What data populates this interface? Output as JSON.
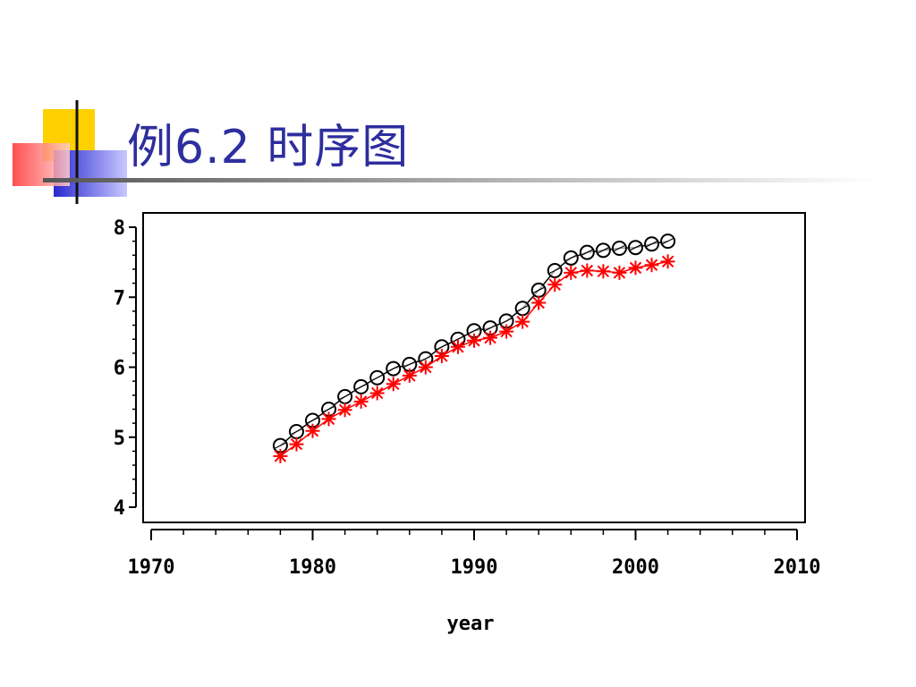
{
  "slide": {
    "title": "例6.2 时序图",
    "accent_colors": {
      "title": "#2e2e9e",
      "yellow": "#ffd000",
      "blue": "#2a2ad0",
      "red": "#ff4040"
    }
  },
  "chart_data": {
    "type": "scatter",
    "title": "",
    "xlabel": "year",
    "ylabel": "",
    "xlim": [
      1970,
      2010
    ],
    "ylim": [
      4,
      8
    ],
    "xticks": [
      1970,
      1980,
      1990,
      2000,
      2010
    ],
    "yticks": [
      4,
      5,
      6,
      7,
      8
    ],
    "grid": false,
    "legend": "none",
    "series": [
      {
        "marker": "circle",
        "color": "#000000",
        "x": [
          1978,
          1979,
          1980,
          1981,
          1982,
          1983,
          1984,
          1985,
          1986,
          1987,
          1988,
          1989,
          1990,
          1991,
          1992,
          1993,
          1994,
          1995,
          1996,
          1997,
          1998,
          1999,
          2000,
          2001,
          2002
        ],
        "y": [
          4.88,
          5.08,
          5.24,
          5.4,
          5.58,
          5.72,
          5.85,
          5.98,
          6.04,
          6.12,
          6.29,
          6.4,
          6.52,
          6.56,
          6.66,
          6.84,
          7.1,
          7.38,
          7.56,
          7.64,
          7.67,
          7.7,
          7.71,
          7.76,
          7.8
        ]
      },
      {
        "marker": "star",
        "color": "#ff0000",
        "x": [
          1978,
          1979,
          1980,
          1981,
          1982,
          1983,
          1984,
          1985,
          1986,
          1987,
          1988,
          1989,
          1990,
          1991,
          1992,
          1993,
          1994,
          1995,
          1996,
          1997,
          1998,
          1999,
          2000,
          2001,
          2002
        ],
        "y": [
          4.73,
          4.9,
          5.09,
          5.26,
          5.39,
          5.51,
          5.63,
          5.76,
          5.88,
          6.0,
          6.16,
          6.29,
          6.38,
          6.42,
          6.51,
          6.65,
          6.92,
          7.18,
          7.35,
          7.38,
          7.37,
          7.35,
          7.42,
          7.46,
          7.51
        ]
      }
    ]
  }
}
